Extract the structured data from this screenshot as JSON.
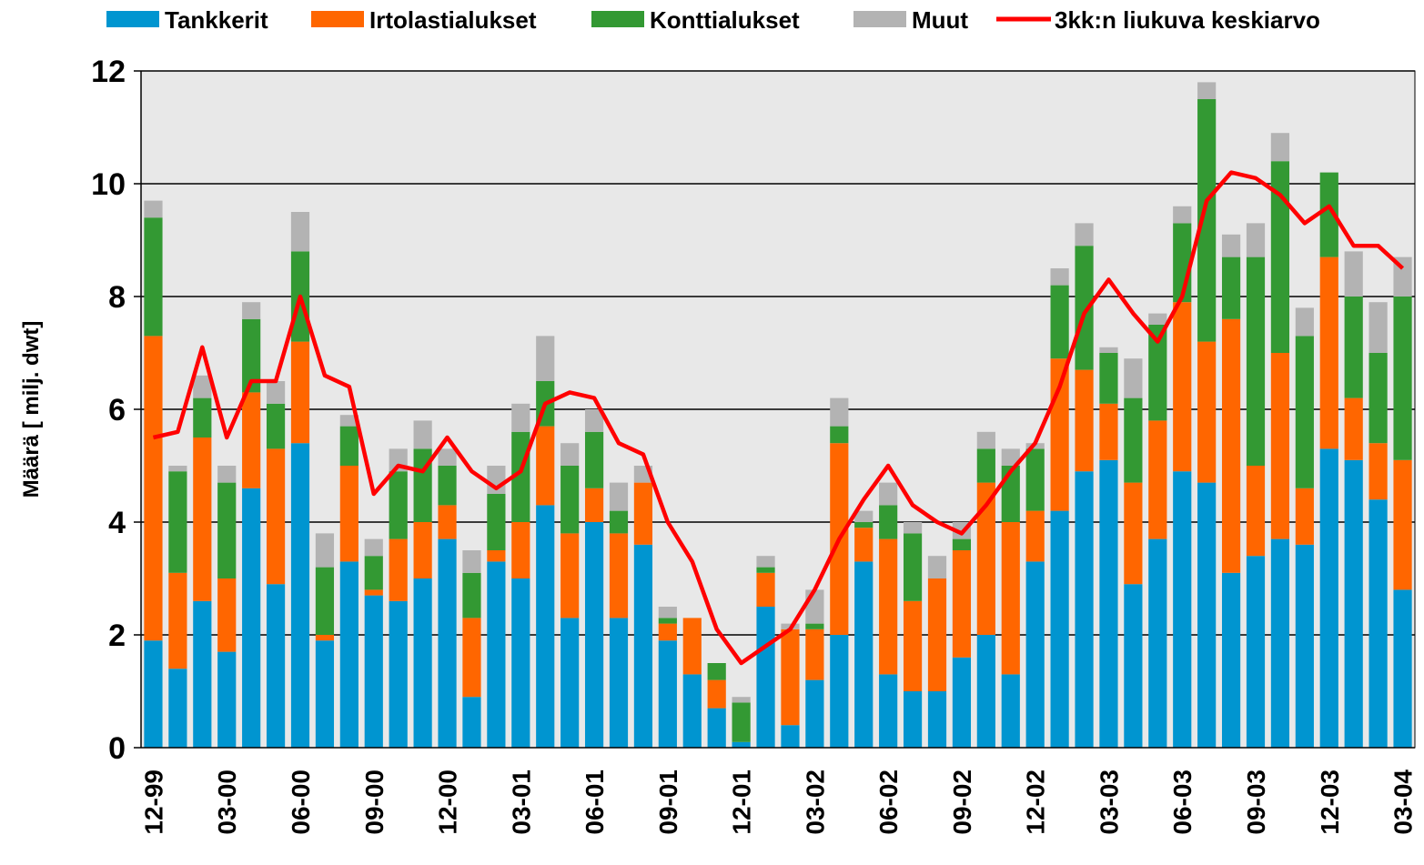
{
  "chart_data": {
    "type": "stacked_bar_line",
    "y_label": "Määrä  [ milj. dwt]",
    "categories": [
      "12-99",
      null,
      null,
      "03-00",
      null,
      null,
      "06-00",
      null,
      null,
      "09-00",
      null,
      null,
      "12-00",
      null,
      null,
      "03-01",
      null,
      null,
      "06-01",
      null,
      null,
      "09-01",
      null,
      null,
      "12-01",
      null,
      null,
      "03-02",
      null,
      null,
      "06-02",
      null,
      null,
      "09-02",
      null,
      null,
      "12-02",
      null,
      null,
      "03-03",
      null,
      null,
      "06-03",
      null,
      null,
      "09-03",
      null,
      null,
      "12-03",
      null,
      null,
      "03-04"
    ],
    "series": [
      {
        "name": "Tankkerit",
        "color": "#0095d0",
        "values": [
          1.9,
          1.4,
          2.6,
          1.7,
          4.6,
          2.9,
          5.4,
          1.9,
          3.3,
          2.7,
          2.6,
          3.0,
          3.7,
          0.9,
          3.3,
          3.0,
          4.3,
          2.3,
          4.0,
          2.3,
          3.6,
          1.9,
          1.3,
          0.7,
          0.1,
          2.5,
          0.4,
          1.2,
          2.0,
          3.3,
          1.3,
          1.0,
          1.0,
          1.6,
          2.0,
          1.3,
          3.3,
          4.2,
          4.9,
          5.1,
          2.9,
          3.7,
          4.9,
          4.7,
          3.1,
          3.4,
          3.7,
          3.6,
          5.3,
          5.1,
          4.4,
          2.8
        ]
      },
      {
        "name": "Irtolastialukset",
        "color": "#ff6600",
        "values": [
          5.4,
          1.7,
          2.9,
          1.3,
          1.7,
          2.4,
          1.8,
          0.1,
          1.7,
          0.1,
          1.1,
          1.0,
          0.6,
          1.4,
          0.2,
          1.0,
          1.4,
          1.5,
          0.6,
          1.5,
          1.1,
          0.3,
          1.0,
          0.5,
          0,
          0.6,
          1.7,
          0.9,
          3.4,
          0.6,
          2.4,
          1.6,
          2.0,
          1.9,
          2.7,
          2.7,
          0.9,
          2.7,
          1.8,
          1.0,
          1.8,
          2.1,
          3.0,
          2.5,
          4.5,
          1.6,
          3.3,
          1.0,
          3.4,
          1.1,
          1.0,
          2.3
        ]
      },
      {
        "name": "Konttialukset",
        "color": "#339933",
        "values": [
          2.1,
          1.8,
          0.7,
          1.7,
          1.3,
          0.8,
          1.6,
          1.2,
          0.7,
          0.6,
          1.2,
          1.3,
          0.7,
          0.8,
          1.0,
          1.6,
          0.8,
          1.2,
          1.0,
          0.4,
          0,
          0.1,
          0,
          0.3,
          0.7,
          0.1,
          0,
          0.1,
          0.3,
          0.1,
          0.6,
          1.2,
          0,
          0.2,
          0.6,
          1.0,
          1.1,
          1.3,
          2.2,
          0.9,
          1.5,
          1.7,
          1.4,
          4.3,
          1.1,
          3.7,
          3.4,
          2.7,
          1.5,
          1.8,
          1.6,
          2.9
        ]
      },
      {
        "name": "Muut",
        "color": "#b3b3b3",
        "values": [
          0.3,
          0.1,
          0.4,
          0.3,
          0.3,
          0.4,
          0.7,
          0.6,
          0.2,
          0.3,
          0.4,
          0.5,
          0.3,
          0.4,
          0.5,
          0.5,
          0.8,
          0.4,
          0.4,
          0.5,
          0.3,
          0.2,
          0,
          0,
          0.1,
          0.2,
          0.1,
          0.6,
          0.5,
          0.2,
          0.4,
          0.2,
          0.4,
          0.3,
          0.3,
          0.3,
          0.1,
          0.3,
          0.4,
          0.1,
          0.7,
          0.2,
          0.3,
          0.3,
          0.4,
          0.6,
          0.5,
          0.5,
          0,
          0.8,
          0.9,
          0.7
        ]
      },
      {
        "name": "3kk:n liukuva keskiarvo",
        "color": "#ff0000",
        "kind": "line",
        "values": [
          5.5,
          5.6,
          7.1,
          5.5,
          6.5,
          6.5,
          8.0,
          6.6,
          6.4,
          4.5,
          5.0,
          4.9,
          5.5,
          4.9,
          4.6,
          4.9,
          6.1,
          6.3,
          6.2,
          5.4,
          5.2,
          4.0,
          3.3,
          2.1,
          1.5,
          1.8,
          2.1,
          2.8,
          3.7,
          4.4,
          5.0,
          4.3,
          4.0,
          3.8,
          4.3,
          4.9,
          5.4,
          6.4,
          7.7,
          8.3,
          7.7,
          7.2,
          8.0,
          9.7,
          10.2,
          10.1,
          9.8,
          9.3,
          9.6,
          8.9,
          8.9,
          8.5
        ]
      }
    ],
    "ylim": [
      0,
      12
    ],
    "yticks": [
      0,
      2,
      4,
      6,
      8,
      10,
      12
    ],
    "grid": true,
    "legend": "top"
  }
}
